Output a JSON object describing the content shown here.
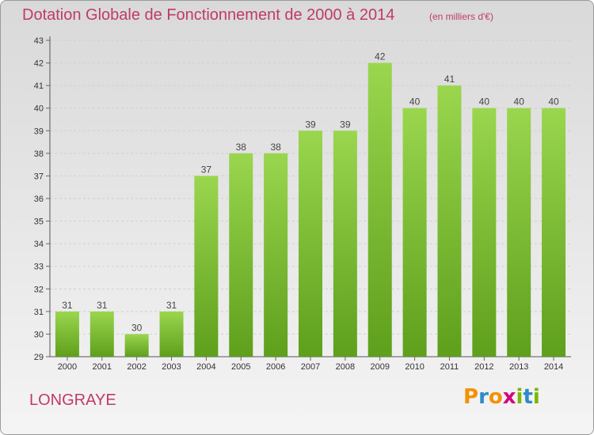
{
  "title": "Dotation Globale de Fonctionnement de 2000 à 2014",
  "subtitle": "(en milliers d'€)",
  "commune": "LONGRAYE",
  "logo": {
    "letters": [
      "P",
      "r",
      "o",
      "x",
      "i",
      "t",
      "i"
    ],
    "colors": [
      "#f39200",
      "#2e8bc9",
      "#f39200",
      "#d6007e",
      "#7ab800",
      "#2e8bc9",
      "#7ab800"
    ]
  },
  "chart_data": {
    "type": "bar",
    "categories": [
      "2000",
      "2001",
      "2002",
      "2003",
      "2004",
      "2005",
      "2006",
      "2007",
      "2008",
      "2009",
      "2010",
      "2011",
      "2012",
      "2013",
      "2014"
    ],
    "values": [
      31,
      31,
      30,
      31,
      37,
      38,
      38,
      39,
      39,
      42,
      40,
      41,
      40,
      40,
      40
    ],
    "ylim": [
      29,
      43
    ],
    "yticks": [
      29,
      30,
      31,
      32,
      33,
      34,
      35,
      36,
      37,
      38,
      39,
      40,
      41,
      42,
      43
    ],
    "grid": true,
    "bar_color": "#7cc232",
    "bar_color_dark": "#5ea21e"
  }
}
